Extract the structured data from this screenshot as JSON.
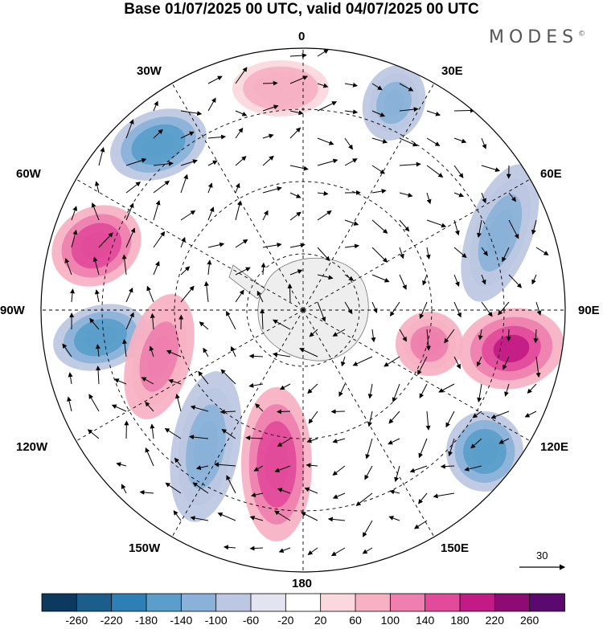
{
  "header": {
    "title": "Base 01/07/2025 00 UTC, valid 04/07/2025 00 UTC",
    "brand": "MODES",
    "brand_mark": "©"
  },
  "map": {
    "projection": "south polar stereographic",
    "longitude_labels": {
      "top": "0",
      "bottom": "180",
      "left": "90W",
      "right": "90E",
      "upper_left_1": "30W",
      "upper_left_2": "60W",
      "upper_right_1": "30E",
      "upper_right_2": "60E",
      "lower_left_1": "120W",
      "lower_left_2": "150W",
      "lower_right_1": "120E",
      "lower_right_2": "150E"
    },
    "anomaly_centers": [
      {
        "lon_label": "near 20W",
        "sign": "negative",
        "level": -180
      },
      {
        "lon_label": "near 70W",
        "sign": "positive",
        "level": 180
      },
      {
        "lon_label": "near 100W",
        "sign": "negative",
        "level": -180
      },
      {
        "lon_label": "near 115W",
        "sign": "positive",
        "level": 140
      },
      {
        "lon_label": "near 140W",
        "sign": "negative",
        "level": -140
      },
      {
        "lon_label": "near 165W",
        "sign": "positive",
        "level": 180
      },
      {
        "lon_label": "near 15E",
        "sign": "negative",
        "level": -140
      },
      {
        "lon_label": "near 0",
        "sign": "positive",
        "level": 100
      },
      {
        "lon_label": "near 70E",
        "sign": "negative",
        "level": -140
      },
      {
        "lon_label": "near 95E",
        "sign": "positive",
        "level": 220
      },
      {
        "lon_label": "near 85E",
        "sign": "positive",
        "level": 140
      },
      {
        "lon_label": "near 125E",
        "sign": "negative",
        "level": -180
      }
    ],
    "vector_reference": "30"
  },
  "colorbar": {
    "labels": [
      "-260",
      "-220",
      "-180",
      "-140",
      "-100",
      "-60",
      "-20",
      "20",
      "60",
      "100",
      "140",
      "180",
      "220",
      "260"
    ],
    "colors": [
      "#0c3a5e",
      "#1b5e8c",
      "#2d7fb6",
      "#5a9ecb",
      "#8ab2d8",
      "#bcc8e2",
      "#e4e4f0",
      "#ffffff",
      "#fbd8dd",
      "#f6b1c3",
      "#ee7fae",
      "#e24b9a",
      "#c21b85",
      "#8e0b74",
      "#5a0a6e"
    ]
  }
}
